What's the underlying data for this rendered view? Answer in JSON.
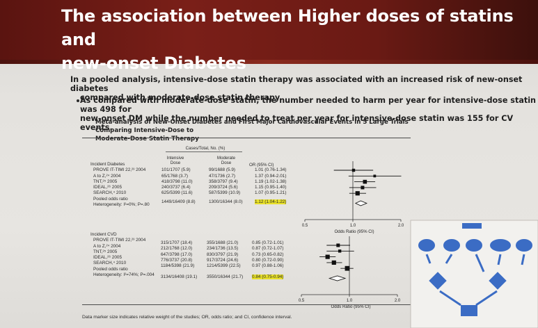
{
  "slide": {
    "title_line1": "The association between Higher doses of statins and",
    "title_line2": "new-onset Diabetes",
    "intro_line1": "In a pooled analysis, intensive-dose statin therapy was associated with an increased risk of new-onset diabetes",
    "intro_line2": "compared with moderate-dose statin therapy.",
    "bullet_line1": "As compared with moderate-dose statin, the number needed to harm per year for intensive-dose statin was 498 for",
    "bullet_line2": "new-onset DM while the number needed to treat per year for intensive-dose statin was 155 for CV events.",
    "figure_title_line1": "Meta-analysis of New-Onset Diabetes and First Major Cardiovascular Events in 5 Large Trials Comparing Intensive-Dose to",
    "figure_title_line2": "Moderate-Dose Statin Therapy",
    "footnote": "Data marker size indicates relative weight of the studies; OR, odds ratio; and CI, confidence interval."
  },
  "table": {
    "cases_header": "Cases/Total, No. (%)",
    "col_intensive": [
      "Intensive",
      "Dose"
    ],
    "col_moderate": [
      "Moderate",
      "Dose"
    ],
    "col_or": "OR (95% CI)",
    "section1": {
      "title": "Incident Diabetes",
      "rows": [
        {
          "label": "PROVE IT-TIMI 22,²³ 2004",
          "intensive": "101/1707 (5.9)",
          "moderate": "99/1688 (5.9)",
          "or": "1.01 (0.76-1.34)"
        },
        {
          "label": "A to Z,²⁴ 2004",
          "intensive": "65/1768 (3.7)",
          "moderate": "47/1736 (2.7)",
          "or": "1.37 (0.94-2.01)"
        },
        {
          "label": "TNT,²⁵ 2005",
          "intensive": "418/3798 (11.0)",
          "moderate": "358/3797 (9.4)",
          "or": "1.19 (1.02-1.38)"
        },
        {
          "label": "IDEAL,²⁶ 2005",
          "intensive": "240/3737 (6.4)",
          "moderate": "209/3724 (5.6)",
          "or": "1.15 (0.95-1.40)"
        },
        {
          "label": "SEARCH,⁴ 2010",
          "intensive": "625/5399 (11.6)",
          "moderate": "587/5399 (10.9)",
          "or": "1.07 (0.95-1.21)"
        }
      ],
      "pooled_label": "Pooled odds ratio",
      "pooled_intensive": "1449/16409 (8.8)",
      "pooled_moderate": "1300/16344 (8.0)",
      "pooled_or": "1.12 (1.04-1.22)",
      "heterogeneity": "Heterogeneity: I²=0%; P=.80"
    },
    "section2": {
      "title": "Incident CVD",
      "rows": [
        {
          "label": "PROVE IT-TIMI 22,²³ 2004",
          "intensive": "315/1707 (18.4)",
          "moderate": "355/1688 (21.0)",
          "or": "0.85 (0.72-1.01)"
        },
        {
          "label": "A to Z,²⁴ 2004",
          "intensive": "212/1768 (12.0)",
          "moderate": "234/1736 (13.5)",
          "or": "0.87 (0.72-1.07)"
        },
        {
          "label": "TNT,²⁵ 2005",
          "intensive": "647/3798 (17.0)",
          "moderate": "830/3797 (21.9)",
          "or": "0.73 (0.65-0.82)"
        },
        {
          "label": "IDEAL,²⁶ 2005",
          "intensive": "776/3737 (20.8)",
          "moderate": "917/3724 (24.6)",
          "or": "0.80 (0.72-0.90)"
        },
        {
          "label": "SEARCH,⁴ 2010",
          "intensive": "1184/5398 (21.9)",
          "moderate": "1214/5399 (22.5)",
          "or": "0.97 (0.88-1.06)"
        }
      ],
      "pooled_label": "Pooled odds ratio",
      "pooled_intensive": "3134/16408 (19.1)",
      "pooled_moderate": "3550/16344 (21.7)",
      "pooled_or": "0.84 (0.75-0.94)",
      "heterogeneity": "Heterogeneity: I²=74%; P=.004"
    },
    "axis_label": "Odds Ratio (95% CI)",
    "axis_ticks": [
      "0.5",
      "1.0",
      "2.0"
    ]
  },
  "chart_data": [
    {
      "type": "forest",
      "title": "Incident Diabetes",
      "xlabel": "Odds Ratio (95% CI)",
      "xscale": "log",
      "xlim": [
        0.5,
        2.0
      ],
      "reference_line": 1.0,
      "studies": [
        {
          "name": "PROVE IT-TIMI 22",
          "or": 1.01,
          "lo": 0.76,
          "hi": 1.34,
          "weight": 2
        },
        {
          "name": "A to Z",
          "or": 1.37,
          "lo": 0.94,
          "hi": 2.01,
          "weight": 1.5
        },
        {
          "name": "TNT",
          "or": 1.19,
          "lo": 1.02,
          "hi": 1.38,
          "weight": 3
        },
        {
          "name": "IDEAL",
          "or": 1.15,
          "lo": 0.95,
          "hi": 1.4,
          "weight": 2.5
        },
        {
          "name": "SEARCH",
          "or": 1.07,
          "lo": 0.95,
          "hi": 1.21,
          "weight": 3.5
        }
      ],
      "pooled": {
        "or": 1.12,
        "lo": 1.04,
        "hi": 1.22
      }
    },
    {
      "type": "forest",
      "title": "Incident CVD",
      "xlabel": "Odds Ratio (95% CI)",
      "xscale": "log",
      "xlim": [
        0.5,
        2.0
      ],
      "reference_line": 1.0,
      "studies": [
        {
          "name": "PROVE IT-TIMI 22",
          "or": 0.85,
          "lo": 0.72,
          "hi": 1.01,
          "weight": 2.5
        },
        {
          "name": "A to Z",
          "or": 0.87,
          "lo": 0.72,
          "hi": 1.07,
          "weight": 2
        },
        {
          "name": "TNT",
          "or": 0.73,
          "lo": 0.65,
          "hi": 0.82,
          "weight": 3.5
        },
        {
          "name": "IDEAL",
          "or": 0.8,
          "lo": 0.72,
          "hi": 0.9,
          "weight": 3.5
        },
        {
          "name": "SEARCH",
          "or": 0.97,
          "lo": 0.88,
          "hi": 1.06,
          "weight": 4
        }
      ],
      "pooled": {
        "or": 0.84,
        "lo": 0.75,
        "hi": 0.94
      }
    }
  ],
  "colors": {
    "title_band": "#6a1a14",
    "highlight": "#e8e02a",
    "diagram_blue": "#3b6cc4"
  }
}
